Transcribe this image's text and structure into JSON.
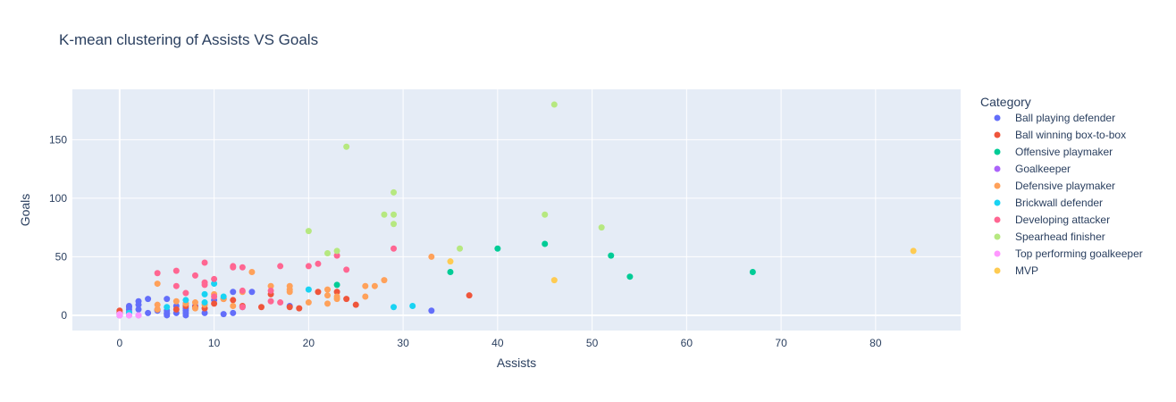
{
  "chart_data": {
    "type": "scatter",
    "title": "K-mean clustering of Assists VS Goals",
    "xlabel": "Assists",
    "ylabel": "Goals",
    "xlim": [
      -5,
      89
    ],
    "ylim": [
      -13,
      193
    ],
    "xticks": [
      0,
      10,
      20,
      30,
      40,
      50,
      60,
      70,
      80
    ],
    "yticks": [
      0,
      50,
      100,
      150
    ],
    "grid": true,
    "plot_background": "#e5ecf6",
    "legend_title": "Category",
    "legend_position": "right",
    "series": [
      {
        "name": "Ball playing defender",
        "color": "#636efa",
        "points": [
          [
            0,
            0
          ],
          [
            0,
            1
          ],
          [
            0,
            2
          ],
          [
            1,
            3
          ],
          [
            1,
            5
          ],
          [
            1,
            7
          ],
          [
            1,
            8
          ],
          [
            2,
            9
          ],
          [
            2,
            12
          ],
          [
            3,
            14
          ],
          [
            2,
            5
          ],
          [
            3,
            2
          ],
          [
            4,
            4
          ],
          [
            5,
            0
          ],
          [
            5,
            1
          ],
          [
            5,
            2
          ],
          [
            5,
            4
          ],
          [
            5,
            14
          ],
          [
            6,
            2
          ],
          [
            6,
            8
          ],
          [
            7,
            0
          ],
          [
            7,
            2
          ],
          [
            7,
            4
          ],
          [
            7,
            6
          ],
          [
            7,
            10
          ],
          [
            8,
            8
          ],
          [
            9,
            2
          ],
          [
            10,
            13
          ],
          [
            11,
            1
          ],
          [
            12,
            2
          ],
          [
            12,
            20
          ],
          [
            13,
            7
          ],
          [
            14,
            20
          ],
          [
            18,
            8
          ],
          [
            33,
            4
          ]
        ]
      },
      {
        "name": "Ball winning box-to-box",
        "color": "#EF553B",
        "points": [
          [
            0,
            2
          ],
          [
            0,
            4
          ],
          [
            4,
            5
          ],
          [
            6,
            5
          ],
          [
            7,
            8
          ],
          [
            8,
            7
          ],
          [
            9,
            6
          ],
          [
            10,
            10
          ],
          [
            11,
            14
          ],
          [
            12,
            13
          ],
          [
            13,
            8
          ],
          [
            15,
            7
          ],
          [
            16,
            18
          ],
          [
            18,
            7
          ],
          [
            19,
            6
          ],
          [
            21,
            20
          ],
          [
            23,
            20
          ],
          [
            24,
            14
          ],
          [
            25,
            9
          ],
          [
            37,
            17
          ]
        ]
      },
      {
        "name": "Offensive playmaker",
        "color": "#00cc96",
        "points": [
          [
            23,
            26
          ],
          [
            35,
            37
          ],
          [
            40,
            57
          ],
          [
            45,
            61
          ],
          [
            52,
            51
          ],
          [
            54,
            33
          ],
          [
            67,
            37
          ]
        ]
      },
      {
        "name": "Goalkeeper",
        "color": "#ab63fa",
        "points": [
          [
            0,
            0
          ],
          [
            1,
            0
          ],
          [
            2,
            0
          ]
        ]
      },
      {
        "name": "Defensive playmaker",
        "color": "#FFA15A",
        "points": [
          [
            4,
            5
          ],
          [
            4,
            9
          ],
          [
            4,
            27
          ],
          [
            6,
            12
          ],
          [
            7,
            10
          ],
          [
            8,
            11
          ],
          [
            8,
            6
          ],
          [
            9,
            9
          ],
          [
            10,
            18
          ],
          [
            11,
            14
          ],
          [
            12,
            8
          ],
          [
            13,
            20
          ],
          [
            14,
            37
          ],
          [
            16,
            25
          ],
          [
            18,
            22
          ],
          [
            18,
            20
          ],
          [
            18,
            25
          ],
          [
            20,
            11
          ],
          [
            22,
            17
          ],
          [
            22,
            22
          ],
          [
            22,
            10
          ],
          [
            23,
            14
          ],
          [
            23,
            16
          ],
          [
            26,
            25
          ],
          [
            26,
            16
          ],
          [
            27,
            25
          ],
          [
            28,
            30
          ],
          [
            33,
            50
          ]
        ]
      },
      {
        "name": "Brickwall defender",
        "color": "#19d3f3",
        "points": [
          [
            1,
            2
          ],
          [
            5,
            7
          ],
          [
            7,
            13
          ],
          [
            9,
            18
          ],
          [
            9,
            11
          ],
          [
            10,
            27
          ],
          [
            11,
            16
          ],
          [
            20,
            22
          ],
          [
            29,
            7
          ],
          [
            31,
            8
          ]
        ]
      },
      {
        "name": "Developing attacker",
        "color": "#FF6692",
        "points": [
          [
            4,
            36
          ],
          [
            6,
            38
          ],
          [
            6,
            25
          ],
          [
            7,
            19
          ],
          [
            8,
            34
          ],
          [
            9,
            45
          ],
          [
            9,
            28
          ],
          [
            9,
            26
          ],
          [
            10,
            31
          ],
          [
            10,
            16
          ],
          [
            12,
            42
          ],
          [
            12,
            41
          ],
          [
            13,
            41
          ],
          [
            13,
            21
          ],
          [
            13,
            7
          ],
          [
            16,
            12
          ],
          [
            16,
            21
          ],
          [
            17,
            11
          ],
          [
            17,
            42
          ],
          [
            20,
            42
          ],
          [
            21,
            44
          ],
          [
            23,
            51
          ],
          [
            24,
            39
          ],
          [
            29,
            57
          ]
        ]
      },
      {
        "name": "Spearhead finisher",
        "color": "#B6E880",
        "points": [
          [
            20,
            72
          ],
          [
            22,
            53
          ],
          [
            23,
            55
          ],
          [
            24,
            144
          ],
          [
            28,
            86
          ],
          [
            29,
            105
          ],
          [
            29,
            86
          ],
          [
            29,
            78
          ],
          [
            36,
            57
          ],
          [
            45,
            86
          ],
          [
            46,
            180
          ],
          [
            51,
            75
          ]
        ]
      },
      {
        "name": "Top performing goalkeeper",
        "color": "#FF97FF",
        "points": [
          [
            0,
            0
          ],
          [
            0,
            1
          ],
          [
            1,
            0
          ],
          [
            2,
            0
          ]
        ]
      },
      {
        "name": "MVP",
        "color": "#FECB52",
        "points": [
          [
            35,
            46
          ],
          [
            46,
            30
          ],
          [
            84,
            55
          ]
        ]
      }
    ]
  }
}
